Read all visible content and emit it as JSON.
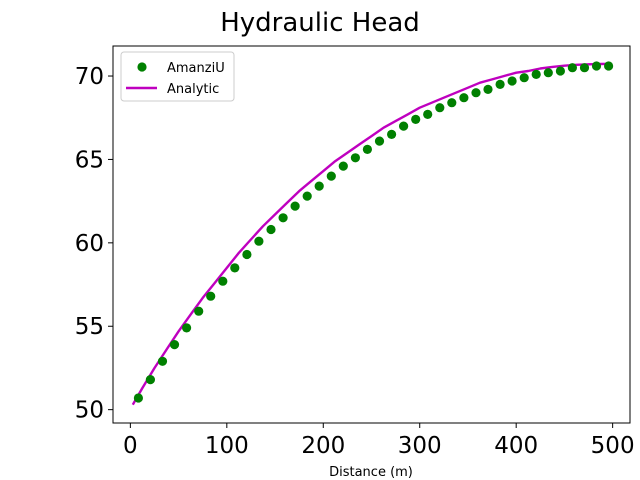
{
  "chart_data": {
    "type": "line",
    "title": "Hydraulic Head",
    "xlabel": "Distance (m)",
    "ylabel": "",
    "xlim": [
      -18,
      518
    ],
    "ylim": [
      49.2,
      71.8
    ],
    "xticks": [
      0,
      100,
      200,
      300,
      400,
      500
    ],
    "yticks": [
      50,
      55,
      60,
      65,
      70
    ],
    "xtick_labels": [
      "0",
      "100",
      "200",
      "300",
      "400",
      "500"
    ],
    "ytick_labels": [
      "50",
      "55",
      "60",
      "65",
      "70"
    ],
    "grid": false,
    "legend_position": "top-left",
    "series": [
      {
        "name": "AmanziU",
        "style": "markers",
        "color": "#008000",
        "x": [
          8.3,
          20.8,
          33.3,
          45.8,
          58.3,
          70.8,
          83.3,
          95.8,
          108.3,
          120.8,
          133.3,
          145.8,
          158.3,
          170.8,
          183.3,
          195.8,
          208.3,
          220.8,
          233.3,
          245.8,
          258.3,
          270.8,
          283.3,
          295.8,
          308.3,
          320.8,
          333.3,
          345.8,
          358.3,
          370.8,
          383.3,
          395.8,
          408.3,
          420.8,
          433.3,
          445.8,
          458.3,
          470.8,
          483.3,
          495.8
        ],
        "y": [
          50.7,
          51.8,
          52.9,
          53.9,
          54.9,
          55.9,
          56.8,
          57.7,
          58.5,
          59.3,
          60.1,
          60.8,
          61.5,
          62.2,
          62.8,
          63.4,
          64.0,
          64.6,
          65.1,
          65.6,
          66.1,
          66.5,
          67.0,
          67.4,
          67.7,
          68.1,
          68.4,
          68.7,
          69.0,
          69.2,
          69.5,
          69.7,
          69.9,
          70.1,
          70.2,
          70.3,
          70.5,
          70.5,
          70.6,
          70.6
        ]
      },
      {
        "name": "Analytic",
        "style": "line",
        "color": "#bf00bf",
        "x": [
          2.5,
          12.5,
          25,
          37.5,
          50,
          62.5,
          75,
          87.5,
          100,
          112.5,
          125,
          137.5,
          150,
          162.5,
          175,
          187.5,
          200,
          212.5,
          225,
          237.5,
          250,
          262.5,
          275,
          287.5,
          300,
          312.5,
          325,
          337.5,
          350,
          362.5,
          375,
          387.5,
          400,
          412.5,
          425,
          437.5,
          450,
          462.5,
          475,
          487.5,
          497.5
        ],
        "y": [
          50.3,
          51.3,
          52.5,
          53.6,
          54.7,
          55.7,
          56.7,
          57.6,
          58.5,
          59.4,
          60.2,
          61.0,
          61.7,
          62.4,
          63.1,
          63.7,
          64.3,
          64.9,
          65.4,
          65.9,
          66.4,
          66.9,
          67.3,
          67.7,
          68.1,
          68.4,
          68.7,
          69.0,
          69.3,
          69.6,
          69.8,
          70.0,
          70.2,
          70.3,
          70.45,
          70.55,
          70.62,
          70.67,
          70.7,
          70.72,
          70.73
        ]
      }
    ]
  }
}
